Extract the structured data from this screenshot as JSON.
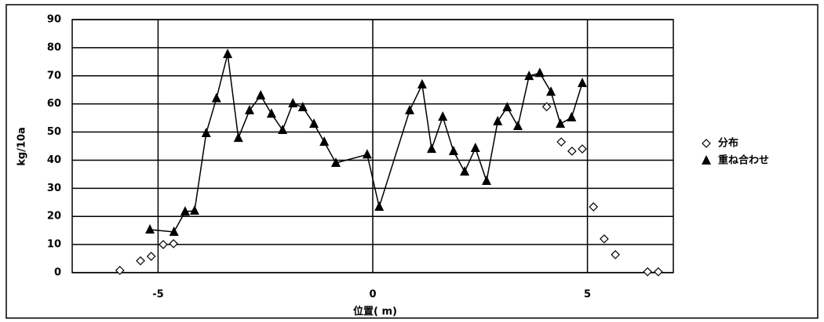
{
  "chart_data": {
    "type": "scatter",
    "x_label": "位置( m)",
    "y_label": "kg/10a",
    "xlim": [
      -7,
      7
    ],
    "xticks": [
      -5,
      0,
      5
    ],
    "ylim": [
      0,
      90
    ],
    "yticks": [
      0,
      10,
      20,
      30,
      40,
      50,
      60,
      70,
      80,
      90
    ],
    "grid": true,
    "legend": "right",
    "series": [
      {
        "name": "分布",
        "color": "#000000",
        "marker": "diamond",
        "line": false,
        "x": [
          -5.89,
          -5.41,
          -5.16,
          -4.88,
          -4.64,
          4.05,
          4.39,
          4.64,
          4.88,
          5.14,
          5.39,
          5.65,
          6.4,
          6.65
        ],
        "values": [
          0.8,
          4.2,
          5.8,
          10,
          10.3,
          59,
          46.5,
          43.2,
          44,
          23.4,
          12,
          6.4,
          0.3,
          0.3
        ]
      },
      {
        "name": "重ね合わせ",
        "color": "#000000",
        "marker": "triangle",
        "line": true,
        "x": [
          -5.19,
          -4.63,
          -4.37,
          -4.15,
          -3.88,
          -3.64,
          -3.38,
          -3.13,
          -2.87,
          -2.61,
          -2.36,
          -2.1,
          -1.86,
          -1.63,
          -1.37,
          -1.13,
          -0.86,
          -0.13,
          0.15,
          0.86,
          1.15,
          1.37,
          1.63,
          1.88,
          2.14,
          2.39,
          2.65,
          2.91,
          3.13,
          3.38,
          3.64,
          3.89,
          4.15,
          4.37,
          4.63,
          4.88
        ],
        "values": [
          15.3,
          14.5,
          21.7,
          22,
          49.6,
          62,
          77.7,
          47.9,
          57.7,
          63,
          56.5,
          50.7,
          60.2,
          58.8,
          52.9,
          46.5,
          39,
          42,
          23.4,
          57.7,
          66.9,
          44,
          55.4,
          43.2,
          35.9,
          44.3,
          32.6,
          53.8,
          58.8,
          52.1,
          69.9,
          71,
          64.3,
          52.9,
          55.2,
          67.4
        ]
      }
    ]
  }
}
